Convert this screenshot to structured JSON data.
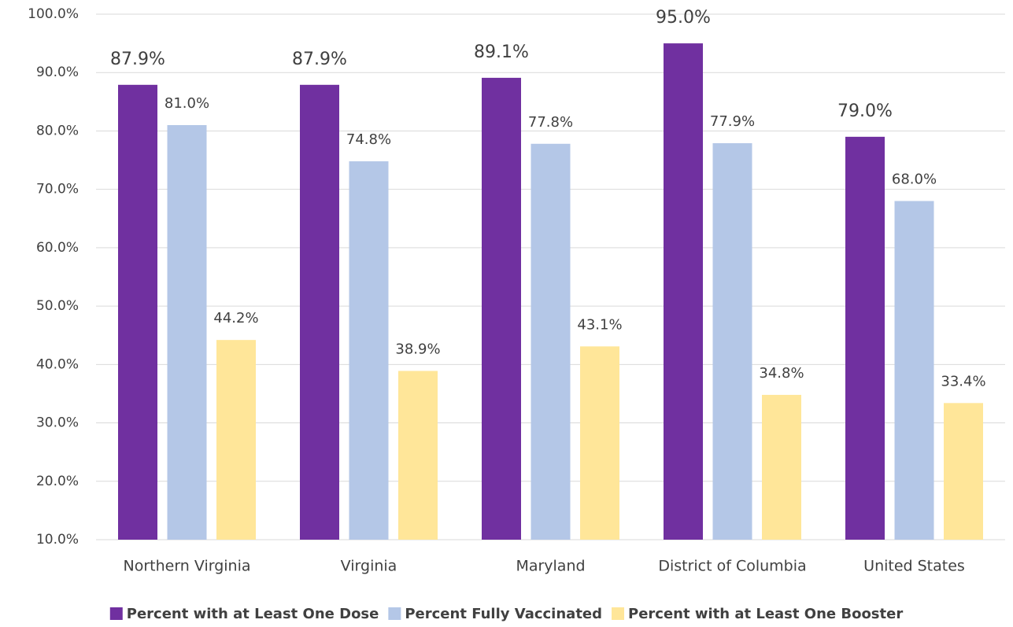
{
  "chart_data": {
    "type": "bar",
    "categories": [
      "Northern Virginia",
      "Virginia",
      "Maryland",
      "District of Columbia",
      "United States"
    ],
    "series": [
      {
        "name": "Percent with at Least One Dose",
        "color": "#7030a0",
        "values": [
          87.9,
          87.9,
          89.1,
          95.0,
          79.0
        ],
        "value_labels": [
          "87.9%",
          "87.9%",
          "89.1%",
          "95.0%",
          "79.0%"
        ]
      },
      {
        "name": "Percent Fully Vaccinated",
        "color": "#b4c7e7",
        "values": [
          81.0,
          74.8,
          77.8,
          77.9,
          68.0
        ],
        "value_labels": [
          "81.0%",
          "74.8%",
          "77.8%",
          "77.9%",
          "68.0%"
        ]
      },
      {
        "name": "Percent with at Least One Booster",
        "color": "#ffe699",
        "values": [
          44.2,
          38.9,
          43.1,
          34.8,
          33.4
        ],
        "value_labels": [
          "44.2%",
          "38.9%",
          "43.1%",
          "34.8%",
          "33.4%"
        ]
      }
    ],
    "ylim": [
      10,
      100
    ],
    "yticks": [
      {
        "value": 10,
        "label": "10.0%"
      },
      {
        "value": 20,
        "label": "20.0%"
      },
      {
        "value": 30,
        "label": "30.0%"
      },
      {
        "value": 40,
        "label": "40.0%"
      },
      {
        "value": 50,
        "label": "50.0%"
      },
      {
        "value": 60,
        "label": "60.0%"
      },
      {
        "value": 70,
        "label": "70.0%"
      },
      {
        "value": 80,
        "label": "80.0%"
      },
      {
        "value": 90,
        "label": "90.0%"
      },
      {
        "value": 100,
        "label": "100.0%"
      }
    ],
    "grid": true,
    "legend": "bottom"
  }
}
